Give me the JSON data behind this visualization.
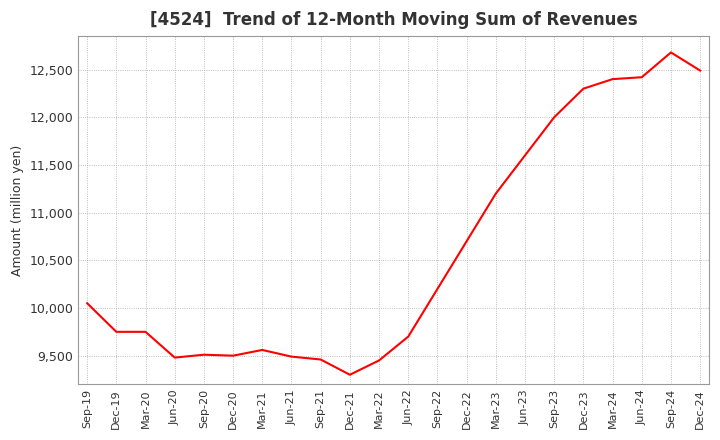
{
  "title": "[4524]  Trend of 12-Month Moving Sum of Revenues",
  "ylabel": "Amount (million yen)",
  "line_color": "#ff0000",
  "background_color": "#ffffff",
  "plot_bg_color": "#ffffff",
  "grid_color": "#aaaaaa",
  "x_labels": [
    "Sep-19",
    "Dec-19",
    "Mar-20",
    "Jun-20",
    "Sep-20",
    "Dec-20",
    "Mar-21",
    "Jun-21",
    "Sep-21",
    "Dec-21",
    "Mar-22",
    "Jun-22",
    "Sep-22",
    "Dec-22",
    "Mar-23",
    "Jun-23",
    "Sep-23",
    "Dec-23",
    "Mar-24",
    "Jun-24",
    "Sep-24",
    "Dec-24"
  ],
  "values": [
    10050,
    9750,
    9750,
    9480,
    9510,
    9500,
    9560,
    9490,
    9460,
    9300,
    9450,
    9700,
    10200,
    10700,
    11200,
    11600,
    12000,
    12300,
    12400,
    12420,
    12680,
    12490
  ],
  "ylim": [
    9200,
    12850
  ],
  "yticks": [
    9500,
    10000,
    10500,
    11000,
    11500,
    12000,
    12500
  ]
}
